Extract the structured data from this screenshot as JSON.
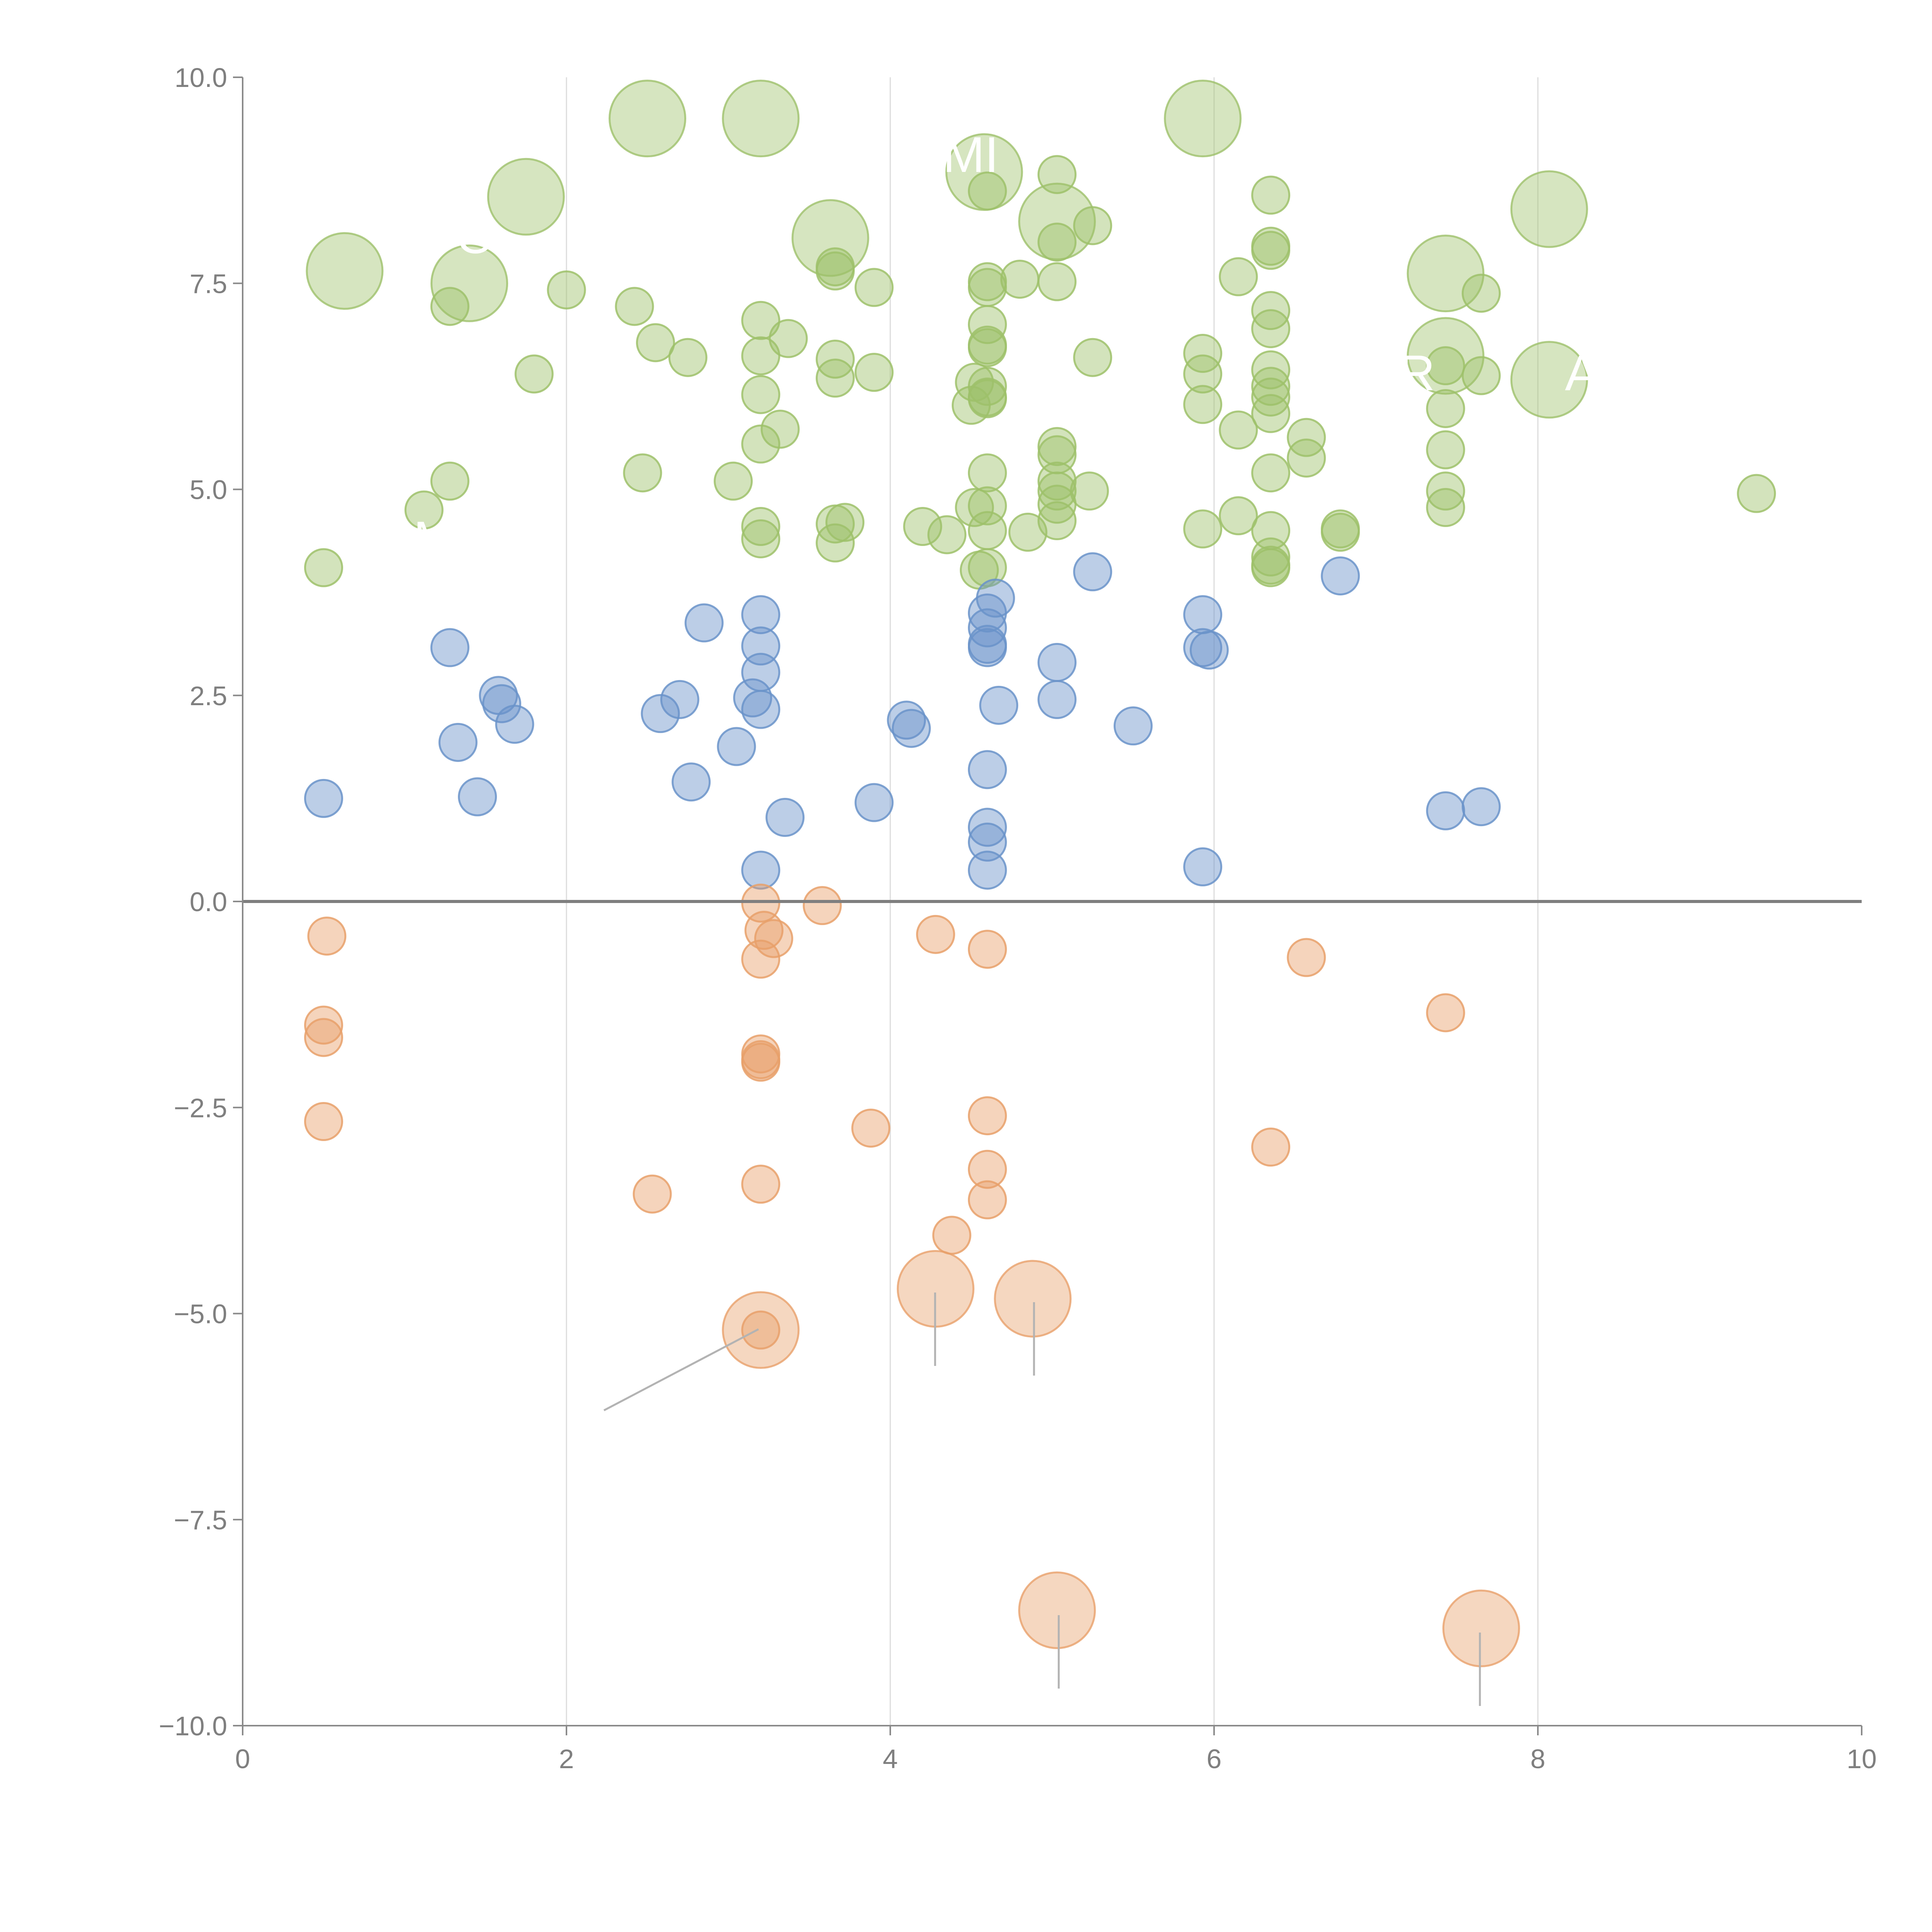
{
  "colors": {
    "green": "#9dc16a",
    "blue": "#6a93c9",
    "orange": "#e8a06a",
    "axis": "#8a8a8a",
    "grid": "#dcdcdc",
    "zero_line": "#7f7f7f",
    "leader": "#b3b3b3"
  },
  "chart_data": {
    "type": "scatter",
    "title": "",
    "xlabel": "",
    "ylabel": "",
    "xlim": [
      0,
      10
    ],
    "ylim": [
      -10,
      10
    ],
    "grid": "vertical",
    "legend": "none",
    "x_ticks": [
      "0",
      "2",
      "4",
      "6",
      "8",
      "10"
    ],
    "y_ticks": [
      "−10.0",
      "−7.5",
      "−5.0",
      "−2.5",
      "0.0",
      "2.5",
      "5.0",
      "7.5",
      "10.0"
    ],
    "annotation_fragments": [
      "O",
      "MI",
      "R",
      "A",
      "M"
    ],
    "large_points": [
      {
        "series": "green",
        "x": 0.63,
        "y": 7.65,
        "size": 3
      },
      {
        "series": "green",
        "x": 1.4,
        "y": 7.5,
        "size": 3
      },
      {
        "series": "green",
        "x": 1.75,
        "y": 8.55,
        "size": 3
      },
      {
        "series": "green",
        "x": 2.5,
        "y": 9.5,
        "size": 3
      },
      {
        "series": "green",
        "x": 3.2,
        "y": 9.5,
        "size": 3
      },
      {
        "series": "green",
        "x": 3.63,
        "y": 8.05,
        "size": 3
      },
      {
        "series": "green",
        "x": 4.58,
        "y": 8.85,
        "size": 3
      },
      {
        "series": "green",
        "x": 5.03,
        "y": 8.25,
        "size": 3
      },
      {
        "series": "green",
        "x": 5.93,
        "y": 9.5,
        "size": 3
      },
      {
        "series": "green",
        "x": 7.43,
        "y": 7.62,
        "size": 3
      },
      {
        "series": "green",
        "x": 7.43,
        "y": 6.62,
        "size": 3
      },
      {
        "series": "green",
        "x": 8.07,
        "y": 8.4,
        "size": 3
      },
      {
        "series": "green",
        "x": 8.07,
        "y": 6.33,
        "size": 3
      },
      {
        "series": "orange",
        "x": 3.2,
        "y": -5.2,
        "size": 3
      },
      {
        "series": "orange",
        "x": 4.28,
        "y": -4.7,
        "size": 3
      },
      {
        "series": "orange",
        "x": 4.88,
        "y": -4.82,
        "size": 3
      },
      {
        "series": "orange",
        "x": 5.03,
        "y": -8.6,
        "size": 3
      },
      {
        "series": "orange",
        "x": 7.65,
        "y": -8.82,
        "size": 3
      }
    ],
    "series": [
      {
        "name": "green",
        "points": [
          [
            0.5,
            4.05
          ],
          [
            1.12,
            4.75
          ],
          [
            1.28,
            5.1
          ],
          [
            1.28,
            7.22
          ],
          [
            1.8,
            6.4
          ],
          [
            2.0,
            7.42
          ],
          [
            2.42,
            7.22
          ],
          [
            2.47,
            5.2
          ],
          [
            2.55,
            6.78
          ],
          [
            2.75,
            6.6
          ],
          [
            3.03,
            5.1
          ],
          [
            3.2,
            7.05
          ],
          [
            3.2,
            6.62
          ],
          [
            3.2,
            6.15
          ],
          [
            3.2,
            5.55
          ],
          [
            3.2,
            4.55
          ],
          [
            3.2,
            4.4
          ],
          [
            3.32,
            5.73
          ],
          [
            3.37,
            6.83
          ],
          [
            3.66,
            7.7
          ],
          [
            3.66,
            7.65
          ],
          [
            3.66,
            6.58
          ],
          [
            3.66,
            6.35
          ],
          [
            3.66,
            4.58
          ],
          [
            3.66,
            4.35
          ],
          [
            3.72,
            4.6
          ],
          [
            3.9,
            7.45
          ],
          [
            3.9,
            6.42
          ],
          [
            4.2,
            4.55
          ],
          [
            4.35,
            4.45
          ],
          [
            4.5,
            6.02
          ],
          [
            4.52,
            6.3
          ],
          [
            4.52,
            4.78
          ],
          [
            4.55,
            4.02
          ],
          [
            4.6,
            8.62
          ],
          [
            4.6,
            7.52
          ],
          [
            4.6,
            7.45
          ],
          [
            4.6,
            7.0
          ],
          [
            4.6,
            6.75
          ],
          [
            4.6,
            6.72
          ],
          [
            4.6,
            6.25
          ],
          [
            4.6,
            6.12
          ],
          [
            4.6,
            6.1
          ],
          [
            4.6,
            5.2
          ],
          [
            4.6,
            4.8
          ],
          [
            4.6,
            4.5
          ],
          [
            4.6,
            4.05
          ],
          [
            4.8,
            7.55
          ],
          [
            4.85,
            4.48
          ],
          [
            5.03,
            8.82
          ],
          [
            5.03,
            8.0
          ],
          [
            5.03,
            7.52
          ],
          [
            5.03,
            5.52
          ],
          [
            5.03,
            5.42
          ],
          [
            5.03,
            5.1
          ],
          [
            5.03,
            4.98
          ],
          [
            5.03,
            4.82
          ],
          [
            5.03,
            4.62
          ],
          [
            5.25,
            8.2
          ],
          [
            5.25,
            6.6
          ],
          [
            5.23,
            4.98
          ],
          [
            5.93,
            6.65
          ],
          [
            5.93,
            6.4
          ],
          [
            5.93,
            6.03
          ],
          [
            5.93,
            4.52
          ],
          [
            6.15,
            7.58
          ],
          [
            6.15,
            5.72
          ],
          [
            6.15,
            4.68
          ],
          [
            6.35,
            8.57
          ],
          [
            6.35,
            7.95
          ],
          [
            6.35,
            7.9
          ],
          [
            6.35,
            7.17
          ],
          [
            6.35,
            6.95
          ],
          [
            6.35,
            6.45
          ],
          [
            6.35,
            6.25
          ],
          [
            6.35,
            6.12
          ],
          [
            6.35,
            5.92
          ],
          [
            6.35,
            5.2
          ],
          [
            6.35,
            4.5
          ],
          [
            6.35,
            4.18
          ],
          [
            6.35,
            4.08
          ],
          [
            6.35,
            4.05
          ],
          [
            6.57,
            5.63
          ],
          [
            6.57,
            5.38
          ],
          [
            6.78,
            4.52
          ],
          [
            6.78,
            4.48
          ],
          [
            7.43,
            6.5
          ],
          [
            7.43,
            5.98
          ],
          [
            7.43,
            5.48
          ],
          [
            7.43,
            4.98
          ],
          [
            7.43,
            4.78
          ],
          [
            7.65,
            7.38
          ],
          [
            7.65,
            6.38
          ],
          [
            9.35,
            4.95
          ]
        ]
      },
      {
        "name": "blue",
        "points": [
          [
            0.5,
            1.25
          ],
          [
            1.28,
            3.08
          ],
          [
            1.33,
            1.93
          ],
          [
            1.45,
            1.27
          ],
          [
            1.58,
            2.5
          ],
          [
            1.6,
            2.4
          ],
          [
            1.68,
            2.15
          ],
          [
            2.58,
            2.28
          ],
          [
            2.7,
            2.45
          ],
          [
            2.77,
            1.45
          ],
          [
            2.85,
            3.38
          ],
          [
            3.05,
            1.88
          ],
          [
            3.15,
            2.47
          ],
          [
            3.2,
            3.48
          ],
          [
            3.2,
            3.1
          ],
          [
            3.2,
            2.78
          ],
          [
            3.2,
            2.33
          ],
          [
            3.2,
            0.38
          ],
          [
            3.35,
            1.02
          ],
          [
            3.9,
            1.2
          ],
          [
            4.1,
            2.2
          ],
          [
            4.13,
            2.1
          ],
          [
            4.6,
            3.5
          ],
          [
            4.6,
            3.32
          ],
          [
            4.6,
            3.12
          ],
          [
            4.6,
            3.08
          ],
          [
            4.6,
            1.6
          ],
          [
            4.6,
            0.9
          ],
          [
            4.6,
            0.72
          ],
          [
            4.6,
            0.38
          ],
          [
            4.65,
            3.68
          ],
          [
            4.67,
            2.38
          ],
          [
            5.03,
            2.9
          ],
          [
            5.03,
            2.45
          ],
          [
            5.25,
            4.0
          ],
          [
            5.5,
            2.13
          ],
          [
            5.93,
            3.48
          ],
          [
            5.93,
            3.08
          ],
          [
            5.93,
            0.42
          ],
          [
            5.97,
            3.05
          ],
          [
            6.78,
            3.95
          ],
          [
            7.43,
            1.1
          ],
          [
            7.65,
            1.15
          ]
        ]
      },
      {
        "name": "orange",
        "points": [
          [
            0.52,
            -0.42
          ],
          [
            0.5,
            -1.5
          ],
          [
            0.5,
            -1.65
          ],
          [
            0.5,
            -2.67
          ],
          [
            2.53,
            -3.55
          ],
          [
            3.2,
            -0.02
          ],
          [
            3.22,
            -0.35
          ],
          [
            3.28,
            -0.45
          ],
          [
            3.2,
            -0.7
          ],
          [
            3.2,
            -1.85
          ],
          [
            3.2,
            -1.92
          ],
          [
            3.2,
            -1.95
          ],
          [
            3.2,
            -3.43
          ],
          [
            3.2,
            -5.2
          ],
          [
            3.58,
            -0.05
          ],
          [
            3.88,
            -2.75
          ],
          [
            4.28,
            -0.4
          ],
          [
            4.38,
            -4.05
          ],
          [
            4.6,
            -0.58
          ],
          [
            4.6,
            -2.6
          ],
          [
            4.6,
            -3.25
          ],
          [
            4.6,
            -3.62
          ],
          [
            6.35,
            -2.98
          ],
          [
            6.57,
            -0.68
          ],
          [
            7.43,
            -1.35
          ]
        ]
      }
    ]
  }
}
